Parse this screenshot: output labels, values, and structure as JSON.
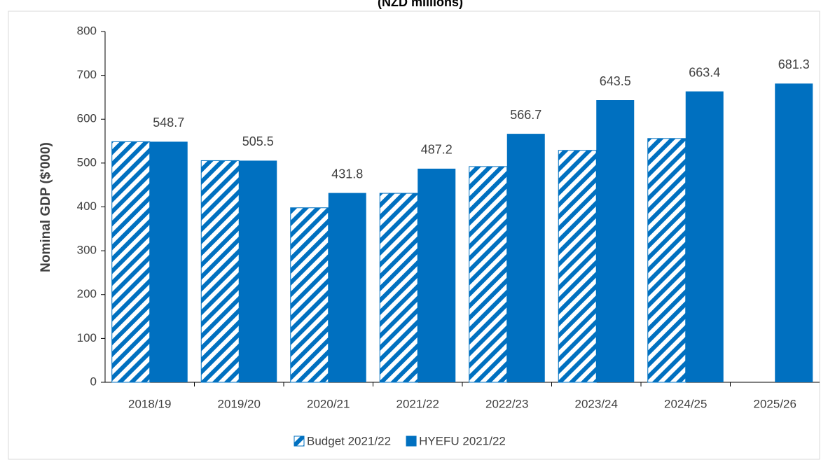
{
  "chart_data": {
    "type": "bar",
    "title": "(NZD millions)",
    "ylabel": "Nominal GDP ($'000)",
    "categories": [
      "2018/19",
      "2019/20",
      "2020/21",
      "2021/22",
      "2022/23",
      "2023/24",
      "2024/25",
      "2025/26"
    ],
    "series": [
      {
        "name": "Budget 2021/22",
        "color": "#0070c0",
        "hatch": true,
        "values": [
          548.7,
          505.5,
          398,
          431,
          492,
          529,
          556,
          null
        ]
      },
      {
        "name": "HYEFU 2021/22",
        "color": "#0070c0",
        "values": [
          548.7,
          505.5,
          431.8,
          487.2,
          566.7,
          643.5,
          663.4,
          681.3
        ],
        "show_labels": true
      }
    ],
    "ylim": [
      0,
      800
    ],
    "yticks": [
      0,
      100,
      200,
      300,
      400,
      500,
      600,
      700,
      800
    ],
    "legend": "bottom"
  }
}
